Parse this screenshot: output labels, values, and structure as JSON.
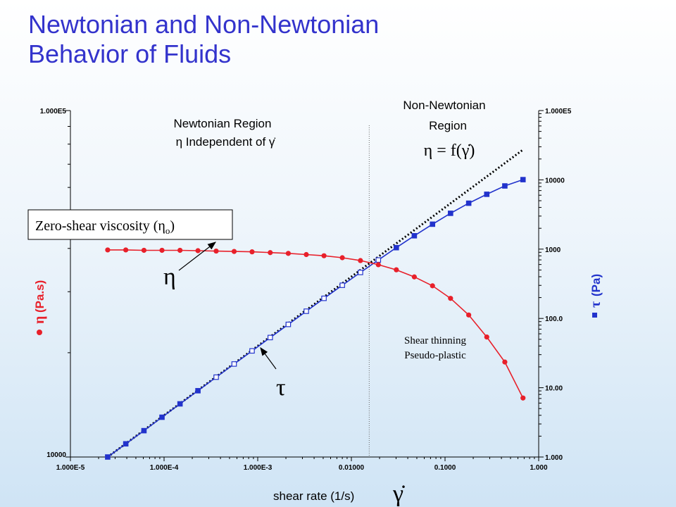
{
  "title_line1": "Newtonian and Non-Newtonian",
  "title_line2": "Behavior of Fluids",
  "colors": {
    "eta": "#e8202a",
    "tau": "#2233cc",
    "title": "#3333cc",
    "newtonian_fit": "#000000"
  },
  "chart_data": {
    "type": "scatter",
    "x_scale": "log",
    "y_left_scale": "log",
    "y_right_scale": "log",
    "xlim": [
      1e-05,
      1.0
    ],
    "ylim_left": [
      10000,
      100000
    ],
    "ylim_right": [
      1.0,
      100000
    ],
    "x_ticks": [
      1e-05,
      0.0001,
      0.001,
      0.01,
      0.1,
      1.0
    ],
    "x_tick_labels": [
      "1.000E-5",
      "1.000E-4",
      "1.000E-3",
      "0.01000",
      "0.1000",
      "1.000"
    ],
    "y_left_ticks": [
      10000,
      100000
    ],
    "y_left_tick_labels": [
      "10000",
      "1.000E5"
    ],
    "y_right_ticks": [
      1,
      10,
      100,
      1000,
      10000,
      100000
    ],
    "y_right_tick_labels": [
      "1.000",
      "10.00",
      "100.0",
      "1000",
      "10000",
      "1.000E5"
    ],
    "xlabel": "shear rate (1/s)",
    "xlabel_symbol": "γ̇",
    "ylabel_left": "(Pa.s)",
    "ylabel_left_symbol": "η",
    "ylabel_right": "(Pa)",
    "ylabel_right_symbol": "τ",
    "boundary_x": 0.0155,
    "series": [
      {
        "axis": "left",
        "marker": "circle",
        "x": [
          2.5e-05,
          3.9e-05,
          6.1e-05,
          9.5e-05,
          0.000148,
          0.00023,
          0.00036,
          0.00056,
          0.00087,
          0.00136,
          0.00212,
          0.0033,
          0.0051,
          0.008,
          0.0125,
          0.0194,
          0.0302,
          0.047,
          0.0735,
          0.1145,
          0.179,
          0.279,
          0.435,
          0.68
        ],
        "values": [
          39600,
          39600,
          39500,
          39500,
          39500,
          39400,
          39300,
          39200,
          39100,
          38900,
          38700,
          38400,
          38100,
          37600,
          36900,
          35900,
          34700,
          33100,
          31200,
          28700,
          25700,
          22200,
          18800,
          14800
        ]
      },
      {
        "axis": "right",
        "marker": "square",
        "x": [
          2.5e-05,
          3.9e-05,
          6.1e-05,
          9.5e-05,
          0.000148,
          0.00023,
          0.00036,
          0.00056,
          0.00087,
          0.00136,
          0.00212,
          0.0033,
          0.0051,
          0.008,
          0.0125,
          0.0194,
          0.0302,
          0.047,
          0.0735,
          0.1145,
          0.179,
          0.279,
          0.435,
          0.68
        ],
        "values": [
          1.0,
          1.55,
          2.4,
          3.75,
          5.85,
          9.05,
          14.2,
          22.0,
          34.0,
          53.0,
          82.0,
          127,
          195,
          301,
          461,
          697,
          1050,
          1560,
          2290,
          3290,
          4600,
          6190,
          8170,
          10070
        ]
      },
      {
        "axis": "right",
        "style": "dotted-line",
        "x": [
          2.5e-05,
          0.68
        ],
        "values": [
          1.0,
          27200
        ]
      }
    ],
    "annotations": [
      {
        "lines": [
          "Newtonian Region",
          "η  Independent of γ̇"
        ]
      },
      {
        "lines": [
          "Non-Newtonian",
          "Region",
          "η = f(γ̇)"
        ]
      },
      {
        "text": "Zero-shear viscosity (η",
        "sub": "o",
        "tail": ")"
      },
      {
        "text": "η"
      },
      {
        "text": "τ"
      },
      {
        "lines": [
          "Shear thinning",
          "Pseudo-plastic"
        ]
      }
    ]
  }
}
